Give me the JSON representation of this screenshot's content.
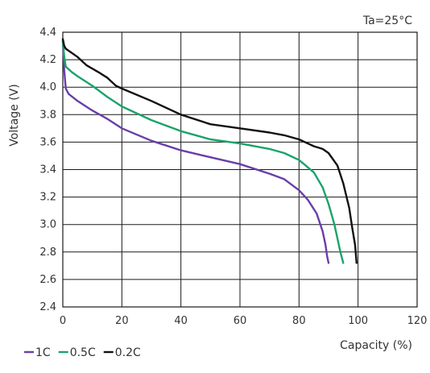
{
  "chart_data": {
    "type": "line",
    "annotation": "Ta=25°C",
    "xlabel": "Capacity (%)",
    "ylabel": "Voltage (V)",
    "xlim": [
      0,
      120
    ],
    "ylim": [
      2.4,
      4.4
    ],
    "xticks": [
      0,
      20,
      40,
      60,
      80,
      100,
      120
    ],
    "yticks": [
      2.4,
      2.6,
      2.8,
      3.0,
      3.2,
      3.4,
      3.6,
      3.8,
      4.0,
      4.2,
      4.4
    ],
    "grid": true,
    "legend_position": "bottom-left",
    "series": [
      {
        "name": "1C",
        "color": "#6a3ea8",
        "points": [
          [
            0,
            4.34
          ],
          [
            0.5,
            4.12
          ],
          [
            1,
            3.99
          ],
          [
            2,
            3.95
          ],
          [
            5,
            3.9
          ],
          [
            10,
            3.83
          ],
          [
            15,
            3.77
          ],
          [
            20,
            3.7
          ],
          [
            30,
            3.61
          ],
          [
            40,
            3.54
          ],
          [
            50,
            3.49
          ],
          [
            60,
            3.44
          ],
          [
            70,
            3.37
          ],
          [
            75,
            3.33
          ],
          [
            80,
            3.25
          ],
          [
            83,
            3.18
          ],
          [
            86,
            3.08
          ],
          [
            88,
            2.95
          ],
          [
            89,
            2.85
          ],
          [
            89.5,
            2.77
          ],
          [
            90,
            2.72
          ]
        ]
      },
      {
        "name": "0.5C",
        "color": "#1aa36a",
        "points": [
          [
            0,
            4.34
          ],
          [
            0.5,
            4.22
          ],
          [
            1,
            4.15
          ],
          [
            3,
            4.11
          ],
          [
            5,
            4.08
          ],
          [
            10,
            4.01
          ],
          [
            15,
            3.93
          ],
          [
            20,
            3.86
          ],
          [
            30,
            3.76
          ],
          [
            40,
            3.68
          ],
          [
            50,
            3.62
          ],
          [
            60,
            3.59
          ],
          [
            70,
            3.55
          ],
          [
            75,
            3.52
          ],
          [
            80,
            3.47
          ],
          [
            85,
            3.38
          ],
          [
            88,
            3.27
          ],
          [
            90,
            3.15
          ],
          [
            92,
            3.0
          ],
          [
            93,
            2.9
          ],
          [
            94,
            2.8
          ],
          [
            95,
            2.72
          ]
        ]
      },
      {
        "name": "0.2C",
        "color": "#111111",
        "points": [
          [
            0,
            4.35
          ],
          [
            0.5,
            4.3
          ],
          [
            1,
            4.28
          ],
          [
            5,
            4.22
          ],
          [
            8,
            4.16
          ],
          [
            12,
            4.11
          ],
          [
            15,
            4.07
          ],
          [
            18,
            4.01
          ],
          [
            20,
            3.99
          ],
          [
            30,
            3.9
          ],
          [
            40,
            3.8
          ],
          [
            50,
            3.73
          ],
          [
            60,
            3.7
          ],
          [
            70,
            3.67
          ],
          [
            75,
            3.65
          ],
          [
            80,
            3.62
          ],
          [
            85,
            3.57
          ],
          [
            88,
            3.55
          ],
          [
            90,
            3.52
          ],
          [
            93,
            3.43
          ],
          [
            95,
            3.3
          ],
          [
            97,
            3.12
          ],
          [
            98,
            2.98
          ],
          [
            99,
            2.85
          ],
          [
            99.5,
            2.72
          ]
        ]
      }
    ]
  }
}
